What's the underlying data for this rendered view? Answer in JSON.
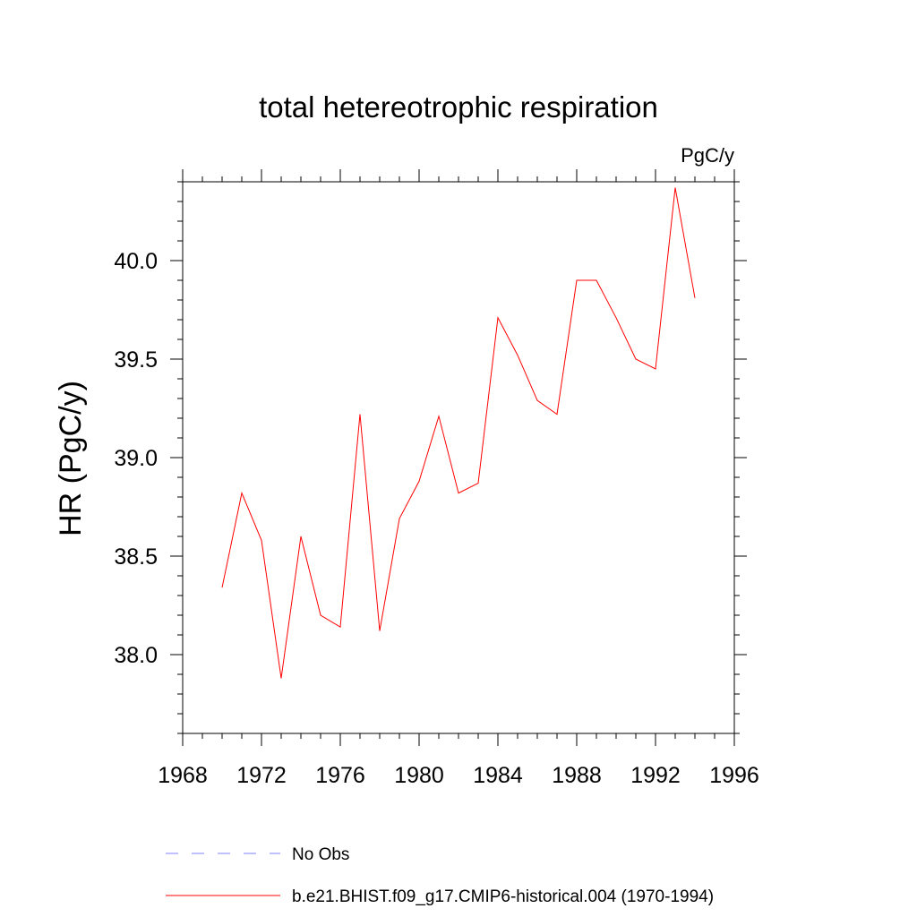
{
  "chart_data": {
    "type": "line",
    "title": "total hetereotrophic respiration",
    "units_label": "PgC/y",
    "ylabel": "HR  (PgC/y)",
    "xlabel": "",
    "xlim": [
      1968,
      1996
    ],
    "ylim": [
      37.6,
      40.4
    ],
    "x_major_ticks": [
      1968,
      1972,
      1976,
      1980,
      1984,
      1988,
      1992,
      1996
    ],
    "x_tick_labels": [
      "1968",
      "1972",
      "1976",
      "1980",
      "1984",
      "1988",
      "1992",
      "1996"
    ],
    "y_major_ticks": [
      38.0,
      38.5,
      39.0,
      39.5,
      40.0
    ],
    "y_tick_labels": [
      "38.0",
      "38.5",
      "39.0",
      "39.5",
      "40.0"
    ],
    "grid": false,
    "legend_position": "bottom",
    "series": [
      {
        "name": "b.e21.BHIST.f09_g17.CMIP6-historical.004 (1970-1994)",
        "color": "#ff0000",
        "style": "solid",
        "x": [
          1970,
          1971,
          1972,
          1973,
          1974,
          1975,
          1976,
          1977,
          1978,
          1979,
          1980,
          1981,
          1982,
          1983,
          1984,
          1985,
          1986,
          1987,
          1988,
          1989,
          1990,
          1991,
          1992,
          1993,
          1994
        ],
        "y": [
          38.34,
          38.82,
          38.58,
          37.88,
          38.6,
          38.2,
          38.14,
          39.22,
          38.12,
          38.69,
          38.88,
          39.21,
          38.82,
          38.87,
          39.71,
          39.52,
          39.29,
          39.22,
          39.9,
          39.9,
          39.71,
          39.5,
          39.45,
          40.37,
          39.81
        ]
      },
      {
        "name": "No Obs",
        "color": "#8080ff",
        "style": "dashed",
        "x": [],
        "y": []
      }
    ]
  }
}
